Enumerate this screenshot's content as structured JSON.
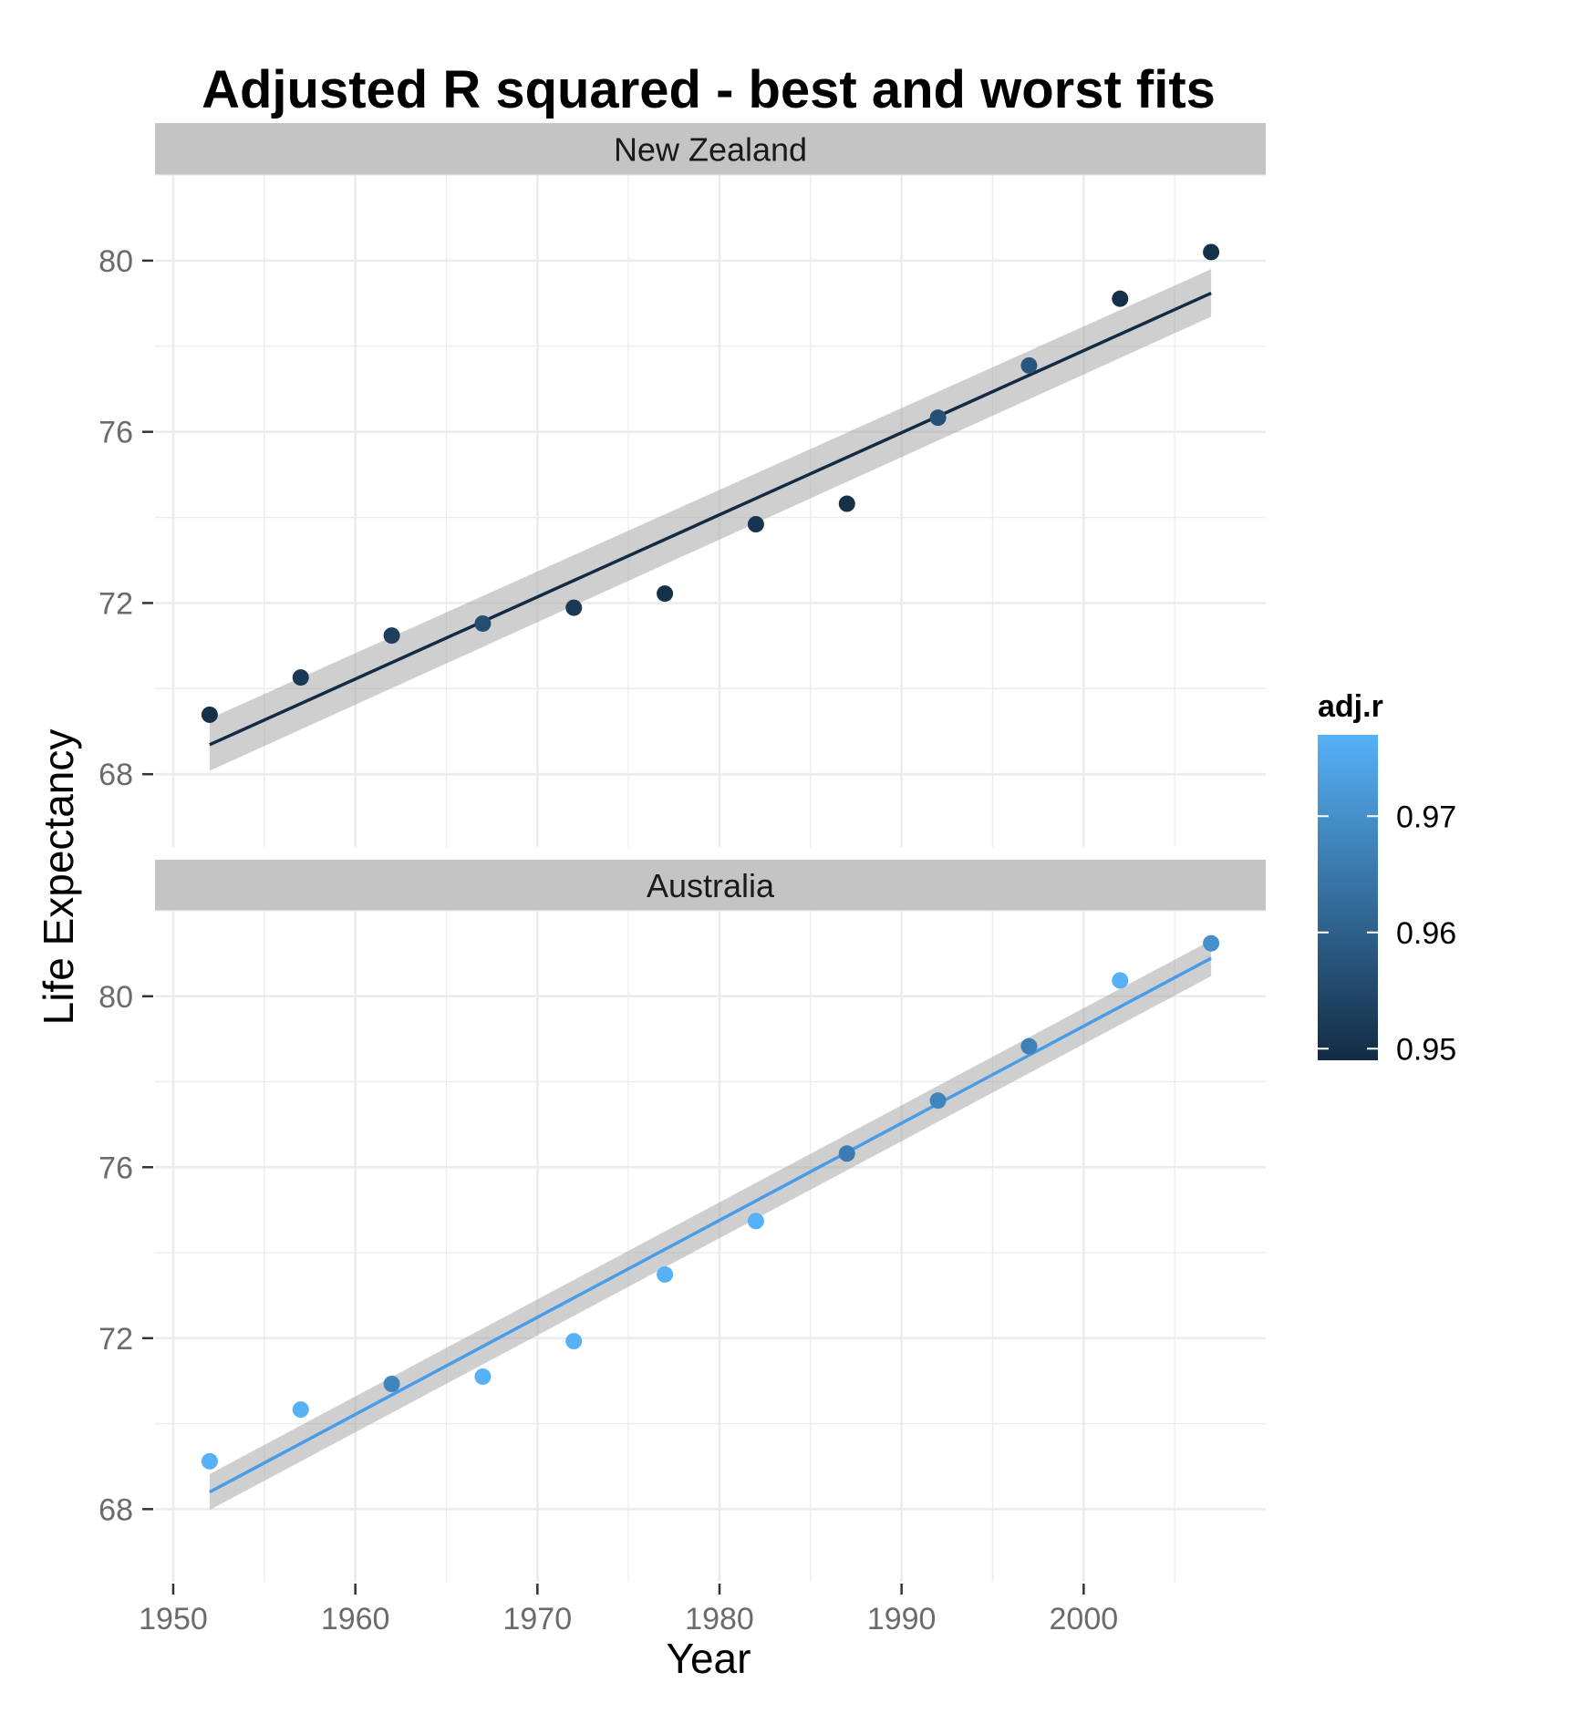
{
  "chart_data": {
    "type": "scatter",
    "title": "Adjusted R squared - best and worst fits",
    "xlabel": "Year",
    "ylabel": "Life Expectancy",
    "xlim": [
      1949,
      2010
    ],
    "ylim": [
      66.3,
      82.0
    ],
    "x_ticks": [
      1950,
      1960,
      1970,
      1980,
      1990,
      2000
    ],
    "x_tick_labels": [
      "1950",
      "1960",
      "1970",
      "1980",
      "1990",
      "2000"
    ],
    "y_ticks": [
      68,
      72,
      76,
      80
    ],
    "y_tick_labels": [
      "68",
      "72",
      "76",
      "80"
    ],
    "grid": true,
    "facets": [
      {
        "name": "New Zealand",
        "adj_r": 0.954,
        "line_color": "#132B43",
        "x": [
          1952,
          1957,
          1962,
          1967,
          1972,
          1977,
          1982,
          1987,
          1992,
          1997,
          2002,
          2007
        ],
        "y": [
          69.39,
          70.26,
          71.24,
          71.52,
          71.89,
          72.22,
          73.84,
          74.32,
          76.33,
          77.55,
          79.11,
          80.2
        ],
        "point_adj_r": [
          0.95,
          0.952,
          0.953,
          0.956,
          0.952,
          0.95,
          0.951,
          0.95,
          0.957,
          0.958,
          0.95,
          0.95
        ],
        "fit": {
          "x": [
            1952,
            2007
          ],
          "y": [
            68.69,
            79.24
          ]
        },
        "band": {
          "lower": [
            68.08,
            78.69
          ],
          "upper": [
            69.3,
            79.8
          ]
        }
      },
      {
        "name": "Australia",
        "adj_r": 0.977,
        "line_color": "#4A9CE8",
        "x": [
          1952,
          1957,
          1962,
          1967,
          1972,
          1977,
          1982,
          1987,
          1992,
          1997,
          2002,
          2007
        ],
        "y": [
          69.12,
          70.33,
          70.93,
          71.1,
          71.93,
          73.49,
          74.74,
          76.32,
          77.56,
          78.83,
          80.37,
          81.24
        ],
        "point_adj_r": [
          0.977,
          0.977,
          0.968,
          0.977,
          0.977,
          0.977,
          0.977,
          0.966,
          0.968,
          0.967,
          0.977,
          0.97
        ],
        "fit": {
          "x": [
            1952,
            2007
          ],
          "y": [
            68.4,
            80.89
          ]
        },
        "band": {
          "lower": [
            67.98,
            80.47
          ],
          "upper": [
            68.82,
            81.31
          ]
        }
      }
    ],
    "legend": {
      "title": "adj.r",
      "position": "right",
      "range": [
        0.949,
        0.977
      ],
      "ticks": [
        0.95,
        0.96,
        0.97
      ],
      "tick_labels": [
        "0.95",
        "0.96",
        "0.97"
      ],
      "color_low": "#132B43",
      "color_high": "#56B1F7"
    },
    "colors": {
      "panel_bg": "#ffffff",
      "grid": "#ececec",
      "strip_bg": "#c4c4c4",
      "band": "#a8a8a8"
    }
  }
}
